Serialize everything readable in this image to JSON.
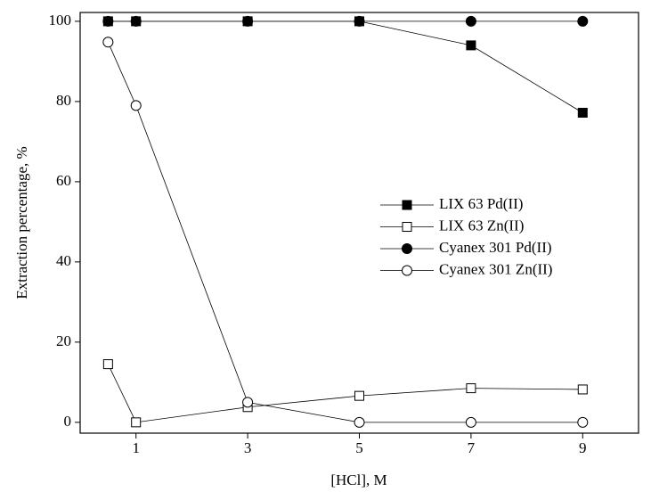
{
  "chart_data": {
    "type": "line",
    "x_label": "[HCl], M",
    "y_label": "Extraction percentage, %",
    "x": [
      0.5,
      1,
      3,
      5,
      7,
      9
    ],
    "xlim": [
      0,
      10
    ],
    "xticks": [
      1,
      3,
      5,
      7,
      9
    ],
    "ylim": [
      -2.7,
      102.2
    ],
    "yticks": [
      0,
      20,
      40,
      60,
      80,
      100
    ],
    "legend": "right",
    "series": [
      {
        "name": "LIX 63 Pd(II)",
        "color": "#000000",
        "marker": "square",
        "filled": true,
        "values": [
          100,
          100,
          100,
          100,
          94,
          77.2
        ]
      },
      {
        "name": "LIX 63 Zn(II)",
        "color": "#000000",
        "marker": "square",
        "filled": false,
        "values": [
          14.5,
          0,
          3.8,
          6.6,
          8.5,
          8.2
        ]
      },
      {
        "name": "Cyanex 301 Pd(II)",
        "color": "#000000",
        "marker": "circle",
        "filled": true,
        "values": [
          100,
          100,
          100,
          100,
          100,
          100
        ]
      },
      {
        "name": "Cyanex 301 Zn(II)",
        "color": "#000000",
        "marker": "circle",
        "filled": false,
        "values": [
          94.8,
          79,
          5,
          0,
          0,
          0
        ]
      }
    ]
  }
}
